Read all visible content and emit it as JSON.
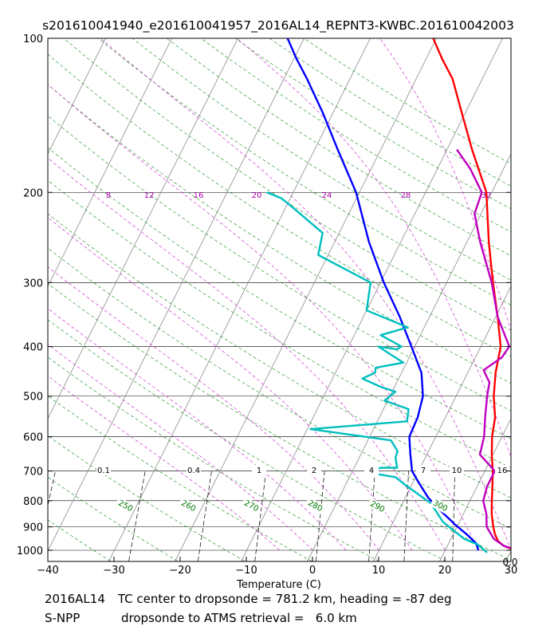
{
  "chart_data": {
    "type": "skew-t line",
    "title": "s201610041940_e201610041957_2016AL14_REPNT3-KWBC.201610042003",
    "xlabel": "Temperature (C)",
    "ylabel": "",
    "xlim": [
      -40,
      30
    ],
    "ylim_hPa": [
      1050,
      100
    ],
    "x_ticks": [
      -40,
      -30,
      -20,
      -10,
      0,
      10,
      20,
      30
    ],
    "y_ticks": [
      100,
      200,
      300,
      400,
      500,
      600,
      700,
      800,
      900,
      1000
    ],
    "mixing_ratio_upper_labels": [
      "8",
      "12",
      "16",
      "20",
      "24",
      "28",
      "32"
    ],
    "mixing_ratio_lower_labels": [
      "0.1",
      "0.4",
      "1",
      "2",
      "4",
      "7",
      "10",
      "16"
    ],
    "dry_adiabat_labels": [
      "250",
      "260",
      "270",
      "280",
      "290",
      "300"
    ],
    "corner_label": "0.0",
    "grid": true,
    "series": [
      {
        "name": "red temperature profile",
        "color": "#ff0000",
        "points": [
          [
            30.5,
            1000
          ],
          [
            28.5,
            980
          ],
          [
            27.3,
            960
          ],
          [
            26.3,
            930
          ],
          [
            25.5,
            900
          ],
          [
            24.3,
            850
          ],
          [
            23.3,
            800
          ],
          [
            22.3,
            750
          ],
          [
            21.2,
            700
          ],
          [
            19.8,
            650
          ],
          [
            18.5,
            600
          ],
          [
            17.5,
            550
          ],
          [
            15.7,
            500
          ],
          [
            14.2,
            450
          ],
          [
            13.0,
            400
          ],
          [
            10.3,
            350
          ],
          [
            7.0,
            300
          ],
          [
            3.3,
            250
          ],
          [
            -0.8,
            200
          ],
          [
            -6.2,
            165
          ],
          [
            -10.5,
            140
          ],
          [
            -14.5,
            120
          ],
          [
            -17.5,
            110
          ],
          [
            -20.5,
            100
          ]
        ]
      },
      {
        "name": "blue dewpoint profile",
        "color": "#0000ff",
        "points": [
          [
            25.0,
            1000
          ],
          [
            24.2,
            970
          ],
          [
            22.0,
            930
          ],
          [
            19.5,
            890
          ],
          [
            16.5,
            840
          ],
          [
            13.5,
            790
          ],
          [
            11.0,
            740
          ],
          [
            9.0,
            700
          ],
          [
            7.5,
            650
          ],
          [
            6.0,
            600
          ],
          [
            5.8,
            550
          ],
          [
            5.0,
            500
          ],
          [
            3.0,
            450
          ],
          [
            -0.5,
            400
          ],
          [
            -4.5,
            350
          ],
          [
            -9.5,
            300
          ],
          [
            -14.8,
            250
          ],
          [
            -20.5,
            200
          ],
          [
            -26.5,
            165
          ],
          [
            -31.5,
            140
          ],
          [
            -36.5,
            120
          ],
          [
            -39.5,
            110
          ],
          [
            -42.5,
            100
          ]
        ]
      },
      {
        "name": "cyan dewpoint profile",
        "color": "#00bfbf",
        "points": [
          [
            26.5,
            1010
          ],
          [
            24.5,
            975
          ],
          [
            22.0,
            950
          ],
          [
            17.5,
            880
          ],
          [
            14.3,
            810
          ],
          [
            9.0,
            745
          ],
          [
            7.0,
            720
          ],
          [
            2.5,
            705
          ],
          [
            4.0,
            690
          ],
          [
            6.5,
            690
          ],
          [
            5.5,
            660
          ],
          [
            5.3,
            640
          ],
          [
            3.5,
            610
          ],
          [
            -9.5,
            580
          ],
          [
            4.5,
            560
          ],
          [
            3.8,
            530
          ],
          [
            -0.5,
            510
          ],
          [
            0.5,
            490
          ],
          [
            -2.0,
            480
          ],
          [
            -5.5,
            462
          ],
          [
            -4.0,
            450
          ],
          [
            -4.3,
            440
          ],
          [
            -0.5,
            430
          ],
          [
            -5.5,
            400
          ],
          [
            -2.5,
            405
          ],
          [
            -2.0,
            400
          ],
          [
            -6.0,
            380
          ],
          [
            -2.5,
            367
          ],
          [
            -10.0,
            340
          ],
          [
            -11.5,
            300
          ],
          [
            -21.5,
            265
          ],
          [
            -22.5,
            240
          ],
          [
            -30.0,
            210
          ],
          [
            -31.5,
            205
          ],
          [
            -34.0,
            200
          ]
        ]
      },
      {
        "name": "magenta temperature profile",
        "color": "#c000c0",
        "points": [
          [
            31.0,
            1000
          ],
          [
            28.5,
            980
          ],
          [
            26.5,
            950
          ],
          [
            24.5,
            900
          ],
          [
            23.5,
            850
          ],
          [
            22.0,
            800
          ],
          [
            21.5,
            750
          ],
          [
            21.5,
            700
          ],
          [
            18.0,
            650
          ],
          [
            17.3,
            600
          ],
          [
            16.0,
            550
          ],
          [
            14.7,
            500
          ],
          [
            14.0,
            470
          ],
          [
            12.2,
            445
          ],
          [
            14.0,
            420
          ],
          [
            14.3,
            400
          ],
          [
            10.3,
            350
          ],
          [
            6.8,
            300
          ],
          [
            2.0,
            250
          ],
          [
            -1.0,
            220
          ],
          [
            -1.5,
            200
          ],
          [
            -5.0,
            180
          ],
          [
            -8.5,
            165
          ]
        ]
      }
    ]
  },
  "footer": {
    "line1_id": "2016AL14",
    "line1_text": "TC center to dropsonde = 781.2 km, heading = -87 deg",
    "line2_id": "S-NPP",
    "line2_text": "dropsonde to ATMS retrieval =   6.0 km"
  }
}
